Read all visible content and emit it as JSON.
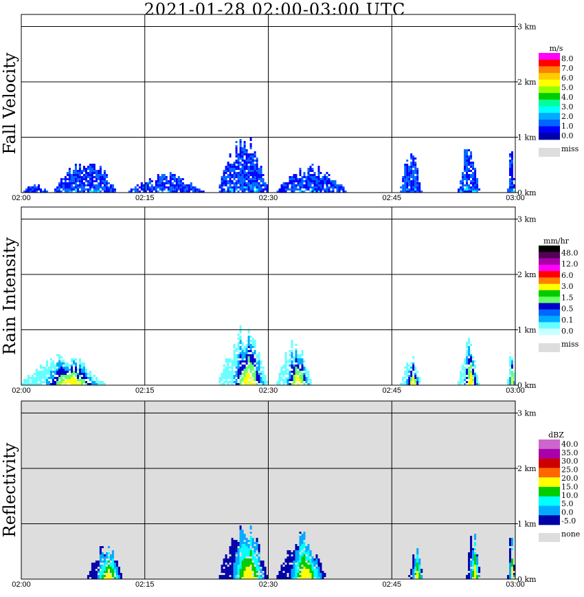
{
  "title": "2021-01-28   02:00-03:00 UTC",
  "x_ticks": [
    "02:00",
    "02:15",
    "02:30",
    "02:45",
    "03:00"
  ],
  "height_ticks": [
    "3 km",
    "2 km",
    "1 km",
    "0 km"
  ],
  "panels": [
    {
      "ylabel": "Fall Velocity",
      "unit": "m/s",
      "background": "#ffffff",
      "colors": [
        "#ff00ff",
        "#ff0000",
        "#ff8000",
        "#ffcc00",
        "#ffff00",
        "#99ff00",
        "#00cc00",
        "#00ff99",
        "#00ffff",
        "#00aaff",
        "#0066ff",
        "#0000ff",
        "#0000aa"
      ],
      "labels": [
        "8.0",
        "7.0",
        "6.0",
        "5.0",
        "4.0",
        "3.0",
        "2.0",
        "1.0",
        "0.0"
      ],
      "miss_label": "miss",
      "miss_color": "#dddddd"
    },
    {
      "ylabel": "Rain Intensity",
      "unit": "mm/hr",
      "background": "#ffffff",
      "colors": [
        "#000000",
        "#550055",
        "#aa00aa",
        "#ff00ff",
        "#ff0000",
        "#ff8000",
        "#ffff00",
        "#00cc00",
        "#66ff66",
        "#0000cc",
        "#0066ff",
        "#00aaff",
        "#66ffff",
        "#ccffff"
      ],
      "labels": [
        "48.0",
        "12.0",
        "6.0",
        "3.0",
        "1.5",
        "0.5",
        "0.1",
        "0.0"
      ],
      "miss_label": "miss",
      "miss_color": "#dddddd"
    },
    {
      "ylabel": "Reflectivity",
      "unit": "dBZ",
      "background": "#dddddd",
      "colors": [
        "#cc66cc",
        "#aa00aa",
        "#cc0000",
        "#ff6600",
        "#ffff00",
        "#00cc00",
        "#00ffff",
        "#00aaff",
        "#0000aa"
      ],
      "labels": [
        "40.0",
        "35.0",
        "30.0",
        "25.0",
        "20.0",
        "15.0",
        "10.0",
        "5.0",
        "0.0",
        "-5.0"
      ],
      "miss_label": "none",
      "miss_color": "#dddddd"
    }
  ],
  "chart_data": [
    {
      "type": "heatmap",
      "title": "2021-01-28   02:00-03:00 UTC",
      "ylabel": "Fall Velocity",
      "unit": "m/s",
      "x_range": [
        "02:00",
        "03:00"
      ],
      "y_range_km": [
        0,
        3.2
      ],
      "colorbar": [
        "8.0",
        "7.0",
        "6.0",
        "5.0",
        "4.0",
        "3.0",
        "2.0",
        "1.0",
        "0.0",
        "miss"
      ],
      "echoes": [
        {
          "start": "02:00",
          "end": "02:04",
          "top_km": 0.2
        },
        {
          "start": "02:04",
          "end": "02:13",
          "top_km": 0.7
        },
        {
          "start": "02:13",
          "end": "02:24",
          "top_km": 0.4
        },
        {
          "start": "02:24",
          "end": "02:31",
          "top_km": 1.15
        },
        {
          "start": "02:31",
          "end": "02:41",
          "top_km": 0.55
        },
        {
          "start": "02:46",
          "end": "02:49",
          "top_km": 0.8
        },
        {
          "start": "02:53",
          "end": "02:56",
          "top_km": 0.95
        },
        {
          "start": "02:59",
          "end": "03:00",
          "top_km": 0.95
        }
      ]
    },
    {
      "type": "heatmap",
      "ylabel": "Rain Intensity",
      "unit": "mm/hr",
      "x_range": [
        "02:00",
        "03:00"
      ],
      "y_range_km": [
        0,
        3.2
      ],
      "colorbar": [
        "48.0",
        "12.0",
        "6.0",
        "3.0",
        "1.5",
        "0.5",
        "0.1",
        "0.0",
        "miss"
      ],
      "echoes": [
        {
          "start": "02:00",
          "end": "02:12",
          "top_km": 0.6
        },
        {
          "start": "02:24",
          "end": "02:31",
          "top_km": 1.15
        },
        {
          "start": "02:31",
          "end": "02:36",
          "top_km": 0.9
        },
        {
          "start": "02:46",
          "end": "02:49",
          "top_km": 0.6
        },
        {
          "start": "02:53",
          "end": "02:56",
          "top_km": 0.9
        },
        {
          "start": "02:59",
          "end": "03:00",
          "top_km": 0.95
        }
      ]
    },
    {
      "type": "heatmap",
      "ylabel": "Reflectivity",
      "unit": "dBZ",
      "x_range": [
        "02:00",
        "03:00"
      ],
      "y_range_km": [
        0,
        3.2
      ],
      "colorbar": [
        "40.0",
        "35.0",
        "30.0",
        "25.0",
        "20.0",
        "15.0",
        "10.0",
        "5.0",
        "0.0",
        "-5.0",
        "none"
      ],
      "echoes": [
        {
          "start": "02:08",
          "end": "02:13",
          "top_km": 0.7
        },
        {
          "start": "02:24",
          "end": "02:31",
          "top_km": 1.15
        },
        {
          "start": "02:31",
          "end": "02:38",
          "top_km": 0.9
        },
        {
          "start": "02:47",
          "end": "02:49",
          "top_km": 0.6
        },
        {
          "start": "02:54",
          "end": "02:56",
          "top_km": 0.95
        },
        {
          "start": "02:59",
          "end": "03:00",
          "top_km": 0.95
        }
      ]
    }
  ]
}
